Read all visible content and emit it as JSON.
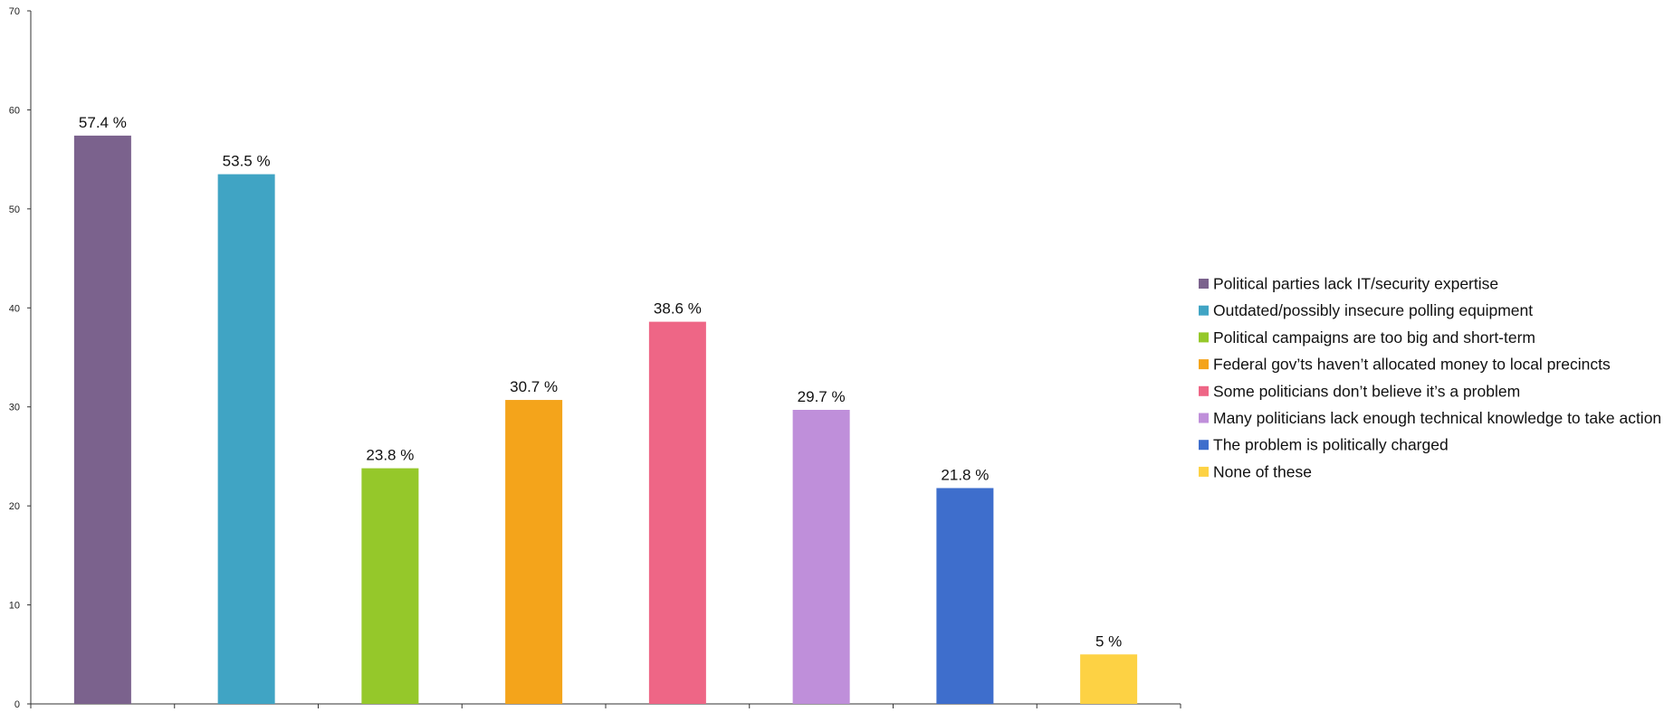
{
  "chart_data": {
    "type": "bar",
    "categories": [
      "Political parties lack IT/security expertise",
      "Outdated/possibly insecure polling equipment",
      "Political campaigns are too big and short-term",
      "Federal gov’ts haven’t allocated money to local precincts",
      "Some politicians don’t believe it’s a problem",
      "Many politicians lack enough technical knowledge to take action",
      "The problem is politically charged",
      "None of these"
    ],
    "values": [
      57.4,
      53.5,
      23.8,
      30.7,
      38.6,
      29.7,
      21.8,
      5
    ],
    "data_labels": [
      "57.4 %",
      "53.5 %",
      "23.8 %",
      "30.7 %",
      "38.6 %",
      "29.7 %",
      "21.8 %",
      "5 %"
    ],
    "colors": [
      "#7b628d",
      "#40a4c4",
      "#95c82a",
      "#f4a41b",
      "#ee6686",
      "#bf8fda",
      "#3e6ecc",
      "#fdd244"
    ],
    "ylim": [
      0,
      70
    ],
    "yticks": [
      "0",
      "10",
      "20",
      "30",
      "40",
      "50",
      "60",
      "70"
    ],
    "ytick_values": [
      0,
      10,
      20,
      30,
      40,
      50,
      60,
      70
    ],
    "grid": false,
    "legend_position": "right",
    "title": "",
    "xlabel": "",
    "ylabel": ""
  }
}
